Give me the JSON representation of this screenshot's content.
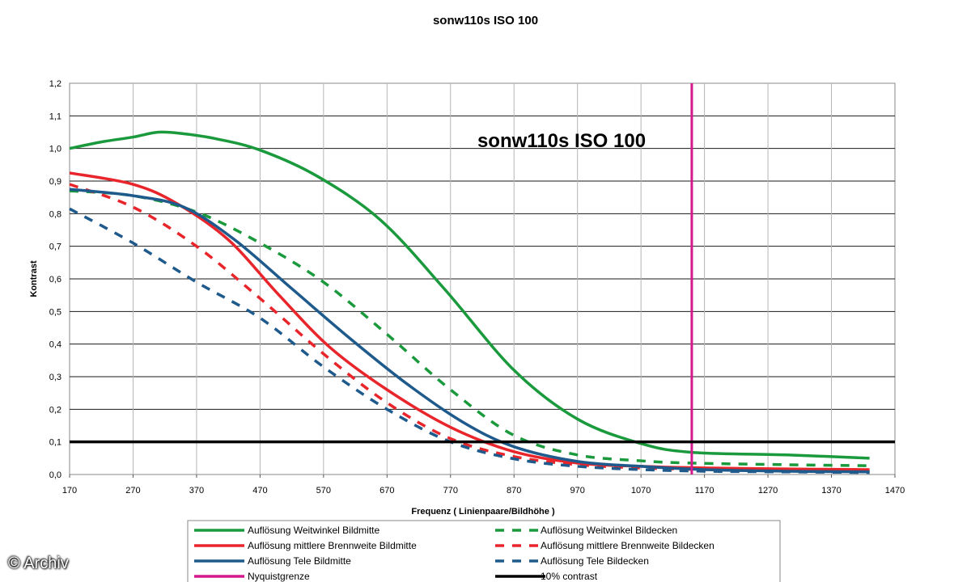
{
  "chart_data": {
    "type": "line",
    "title": "sonw110s ISO 100",
    "inner_title": "sonw110s ISO 100",
    "xlabel": "Frequenz ( Linienpaare/Bildhöhe )",
    "ylabel": "Kontrast",
    "xlim": [
      170,
      1470
    ],
    "ylim": [
      0.0,
      1.2
    ],
    "x_ticks": [
      "170",
      "270",
      "370",
      "470",
      "570",
      "670",
      "770",
      "870",
      "970",
      "1070",
      "1170",
      "1270",
      "1370",
      "1470"
    ],
    "y_ticks": [
      "0,0",
      "0,1",
      "0,2",
      "0,3",
      "0,4",
      "0,5",
      "0,6",
      "0,7",
      "0,8",
      "0,9",
      "1,0",
      "1,1",
      "1,2"
    ],
    "grid": "horizontal",
    "legend_position": "bottom",
    "series": [
      {
        "name": "Auflösung Weitwinkel Bildmitte",
        "color": "#1a9a3c",
        "style": "solid",
        "x": [
          170,
          220,
          270,
          310,
          350,
          400,
          470,
          560,
          660,
          760,
          870,
          970,
          1070,
          1150,
          1300,
          1430
        ],
        "y": [
          1.0,
          1.02,
          1.035,
          1.05,
          1.045,
          1.03,
          0.995,
          0.915,
          0.78,
          0.57,
          0.32,
          0.17,
          0.095,
          0.068,
          0.06,
          0.05
        ]
      },
      {
        "name": "Auflösung Weitwinkel Bildecken",
        "color": "#1a9a3c",
        "style": "dashed",
        "x": [
          170,
          270,
          370,
          470,
          570,
          670,
          770,
          870,
          970,
          1070,
          1150,
          1300,
          1430
        ],
        "y": [
          0.87,
          0.855,
          0.805,
          0.71,
          0.59,
          0.43,
          0.26,
          0.12,
          0.06,
          0.042,
          0.035,
          0.03,
          0.027
        ]
      },
      {
        "name": "Auflösung mittlere Brennweite Bildmitte",
        "color": "#e8252b",
        "style": "solid",
        "x": [
          170,
          270,
          340,
          420,
          500,
          580,
          670,
          770,
          870,
          970,
          1070,
          1170,
          1300,
          1430
        ],
        "y": [
          0.925,
          0.89,
          0.83,
          0.72,
          0.55,
          0.39,
          0.26,
          0.145,
          0.07,
          0.035,
          0.025,
          0.02,
          0.017,
          0.015
        ]
      },
      {
        "name": "Auflösung mittlere Brennweite Bildecken",
        "color": "#e8252b",
        "style": "dashed",
        "x": [
          170,
          270,
          370,
          470,
          570,
          670,
          770,
          870,
          970,
          1070,
          1170,
          1300,
          1430
        ],
        "y": [
          0.89,
          0.82,
          0.7,
          0.54,
          0.37,
          0.22,
          0.11,
          0.055,
          0.03,
          0.02,
          0.015,
          0.012,
          0.01
        ]
      },
      {
        "name": "Auflösung Tele Bildmitte",
        "color": "#1f5a8c",
        "style": "solid",
        "x": [
          170,
          270,
          350,
          430,
          520,
          610,
          700,
          790,
          870,
          970,
          1070,
          1170,
          1300,
          1430
        ],
        "y": [
          0.875,
          0.855,
          0.82,
          0.72,
          0.57,
          0.42,
          0.28,
          0.16,
          0.085,
          0.04,
          0.025,
          0.015,
          0.01,
          0.008
        ]
      },
      {
        "name": "Auflösung Tele Bildecken",
        "color": "#1f5a8c",
        "style": "dashed",
        "x": [
          170,
          270,
          370,
          470,
          570,
          670,
          770,
          870,
          970,
          1070,
          1170,
          1300,
          1430
        ],
        "y": [
          0.815,
          0.71,
          0.59,
          0.48,
          0.33,
          0.2,
          0.1,
          0.048,
          0.025,
          0.015,
          0.01,
          0.008,
          0.006
        ]
      },
      {
        "name": "Nyquistgrenze",
        "color": "#d4188e",
        "style": "vertical",
        "x_value": 1150
      },
      {
        "name": "10% contrast",
        "color": "#000000",
        "style": "horizontal",
        "y_value": 0.1
      }
    ]
  },
  "watermark": "© Archiv"
}
